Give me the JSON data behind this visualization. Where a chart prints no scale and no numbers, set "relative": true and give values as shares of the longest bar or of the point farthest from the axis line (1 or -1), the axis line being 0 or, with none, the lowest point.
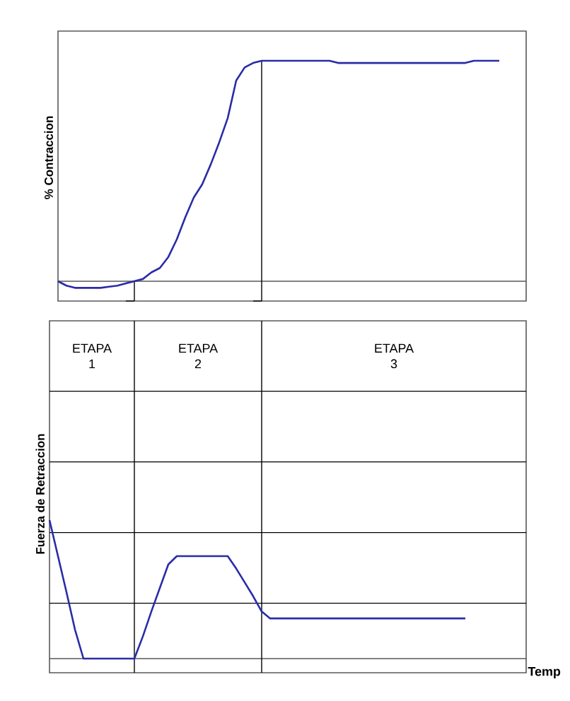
{
  "chart_data": [
    {
      "type": "line",
      "ylabel": "% Contraccion",
      "relative": true,
      "color": "#2b2ba8",
      "marker": "none",
      "categories": [
        null,
        null,
        null,
        null,
        null,
        null,
        null,
        null,
        null,
        null,
        null,
        null,
        null,
        null,
        null,
        null,
        null,
        null,
        null,
        null,
        null,
        null,
        null,
        null,
        null,
        null,
        null,
        null,
        null,
        null,
        null,
        null,
        null,
        null,
        null,
        null,
        null,
        null,
        null,
        null,
        null,
        null,
        null,
        null,
        null,
        null,
        null,
        null,
        null,
        null,
        null,
        null,
        null,
        null,
        null,
        null,
        null
      ],
      "values": [
        null,
        0,
        -0.02,
        -0.03,
        -0.03,
        -0.03,
        -0.03,
        -0.025,
        -0.02,
        -0.01,
        0,
        0.01,
        0.04,
        0.06,
        0.11,
        0.19,
        0.29,
        0.38,
        0.44,
        0.53,
        0.63,
        0.74,
        0.91,
        0.97,
        0.99,
        1,
        1,
        1,
        1,
        1,
        1,
        1,
        1,
        1,
        0.99,
        0.99,
        0.99,
        0.99,
        0.99,
        0.99,
        0.99,
        0.99,
        0.99,
        0.99,
        0.99,
        0.99,
        0.99,
        0.99,
        0.99,
        0.99,
        1,
        1,
        1,
        1,
        null,
        null,
        null
      ]
    },
    {
      "type": "line",
      "ylabel": "Fuerza de Retraccion",
      "xlabel": "Temp",
      "relative": true,
      "color": "#2b2ba8",
      "marker": "none",
      "ref_lines": [
        {
          "axis": "y",
          "value": 0.4
        },
        {
          "axis": "y",
          "value": 0.91
        },
        {
          "axis": "y",
          "value": 1.42
        },
        {
          "axis": "y",
          "value": 1.93
        }
      ],
      "categories": [
        null,
        null,
        null,
        null,
        null,
        null,
        null,
        null,
        null,
        null,
        null,
        null,
        null,
        null,
        null,
        null,
        null,
        null,
        null,
        null,
        null,
        null,
        null,
        null,
        null,
        null,
        null,
        null,
        null,
        null,
        null,
        null,
        null,
        null,
        null,
        null,
        null,
        null,
        null,
        null,
        null,
        null,
        null,
        null,
        null,
        null,
        null,
        null,
        null,
        null,
        null,
        null,
        null,
        null,
        null,
        null,
        null
      ],
      "values": [
        1,
        0.74,
        0.48,
        0.21,
        0,
        0,
        0,
        0,
        0,
        0,
        0,
        0.16,
        0.34,
        0.51,
        0.68,
        0.74,
        0.74,
        0.74,
        0.74,
        0.74,
        0.74,
        0.74,
        0.65,
        0.55,
        0.45,
        0.34,
        0.29,
        0.29,
        0.29,
        0.29,
        0.29,
        0.29,
        0.29,
        0.29,
        0.29,
        0.29,
        0.29,
        0.29,
        0.29,
        0.29,
        0.29,
        0.29,
        0.29,
        0.29,
        0.29,
        0.29,
        0.29,
        0.29,
        0.29,
        0.29,
        null,
        null,
        null,
        null,
        null,
        null,
        null
      ],
      "annotations": [
        "ETAPA 1",
        "ETAPA 2",
        "ETAPA 3"
      ]
    }
  ]
}
